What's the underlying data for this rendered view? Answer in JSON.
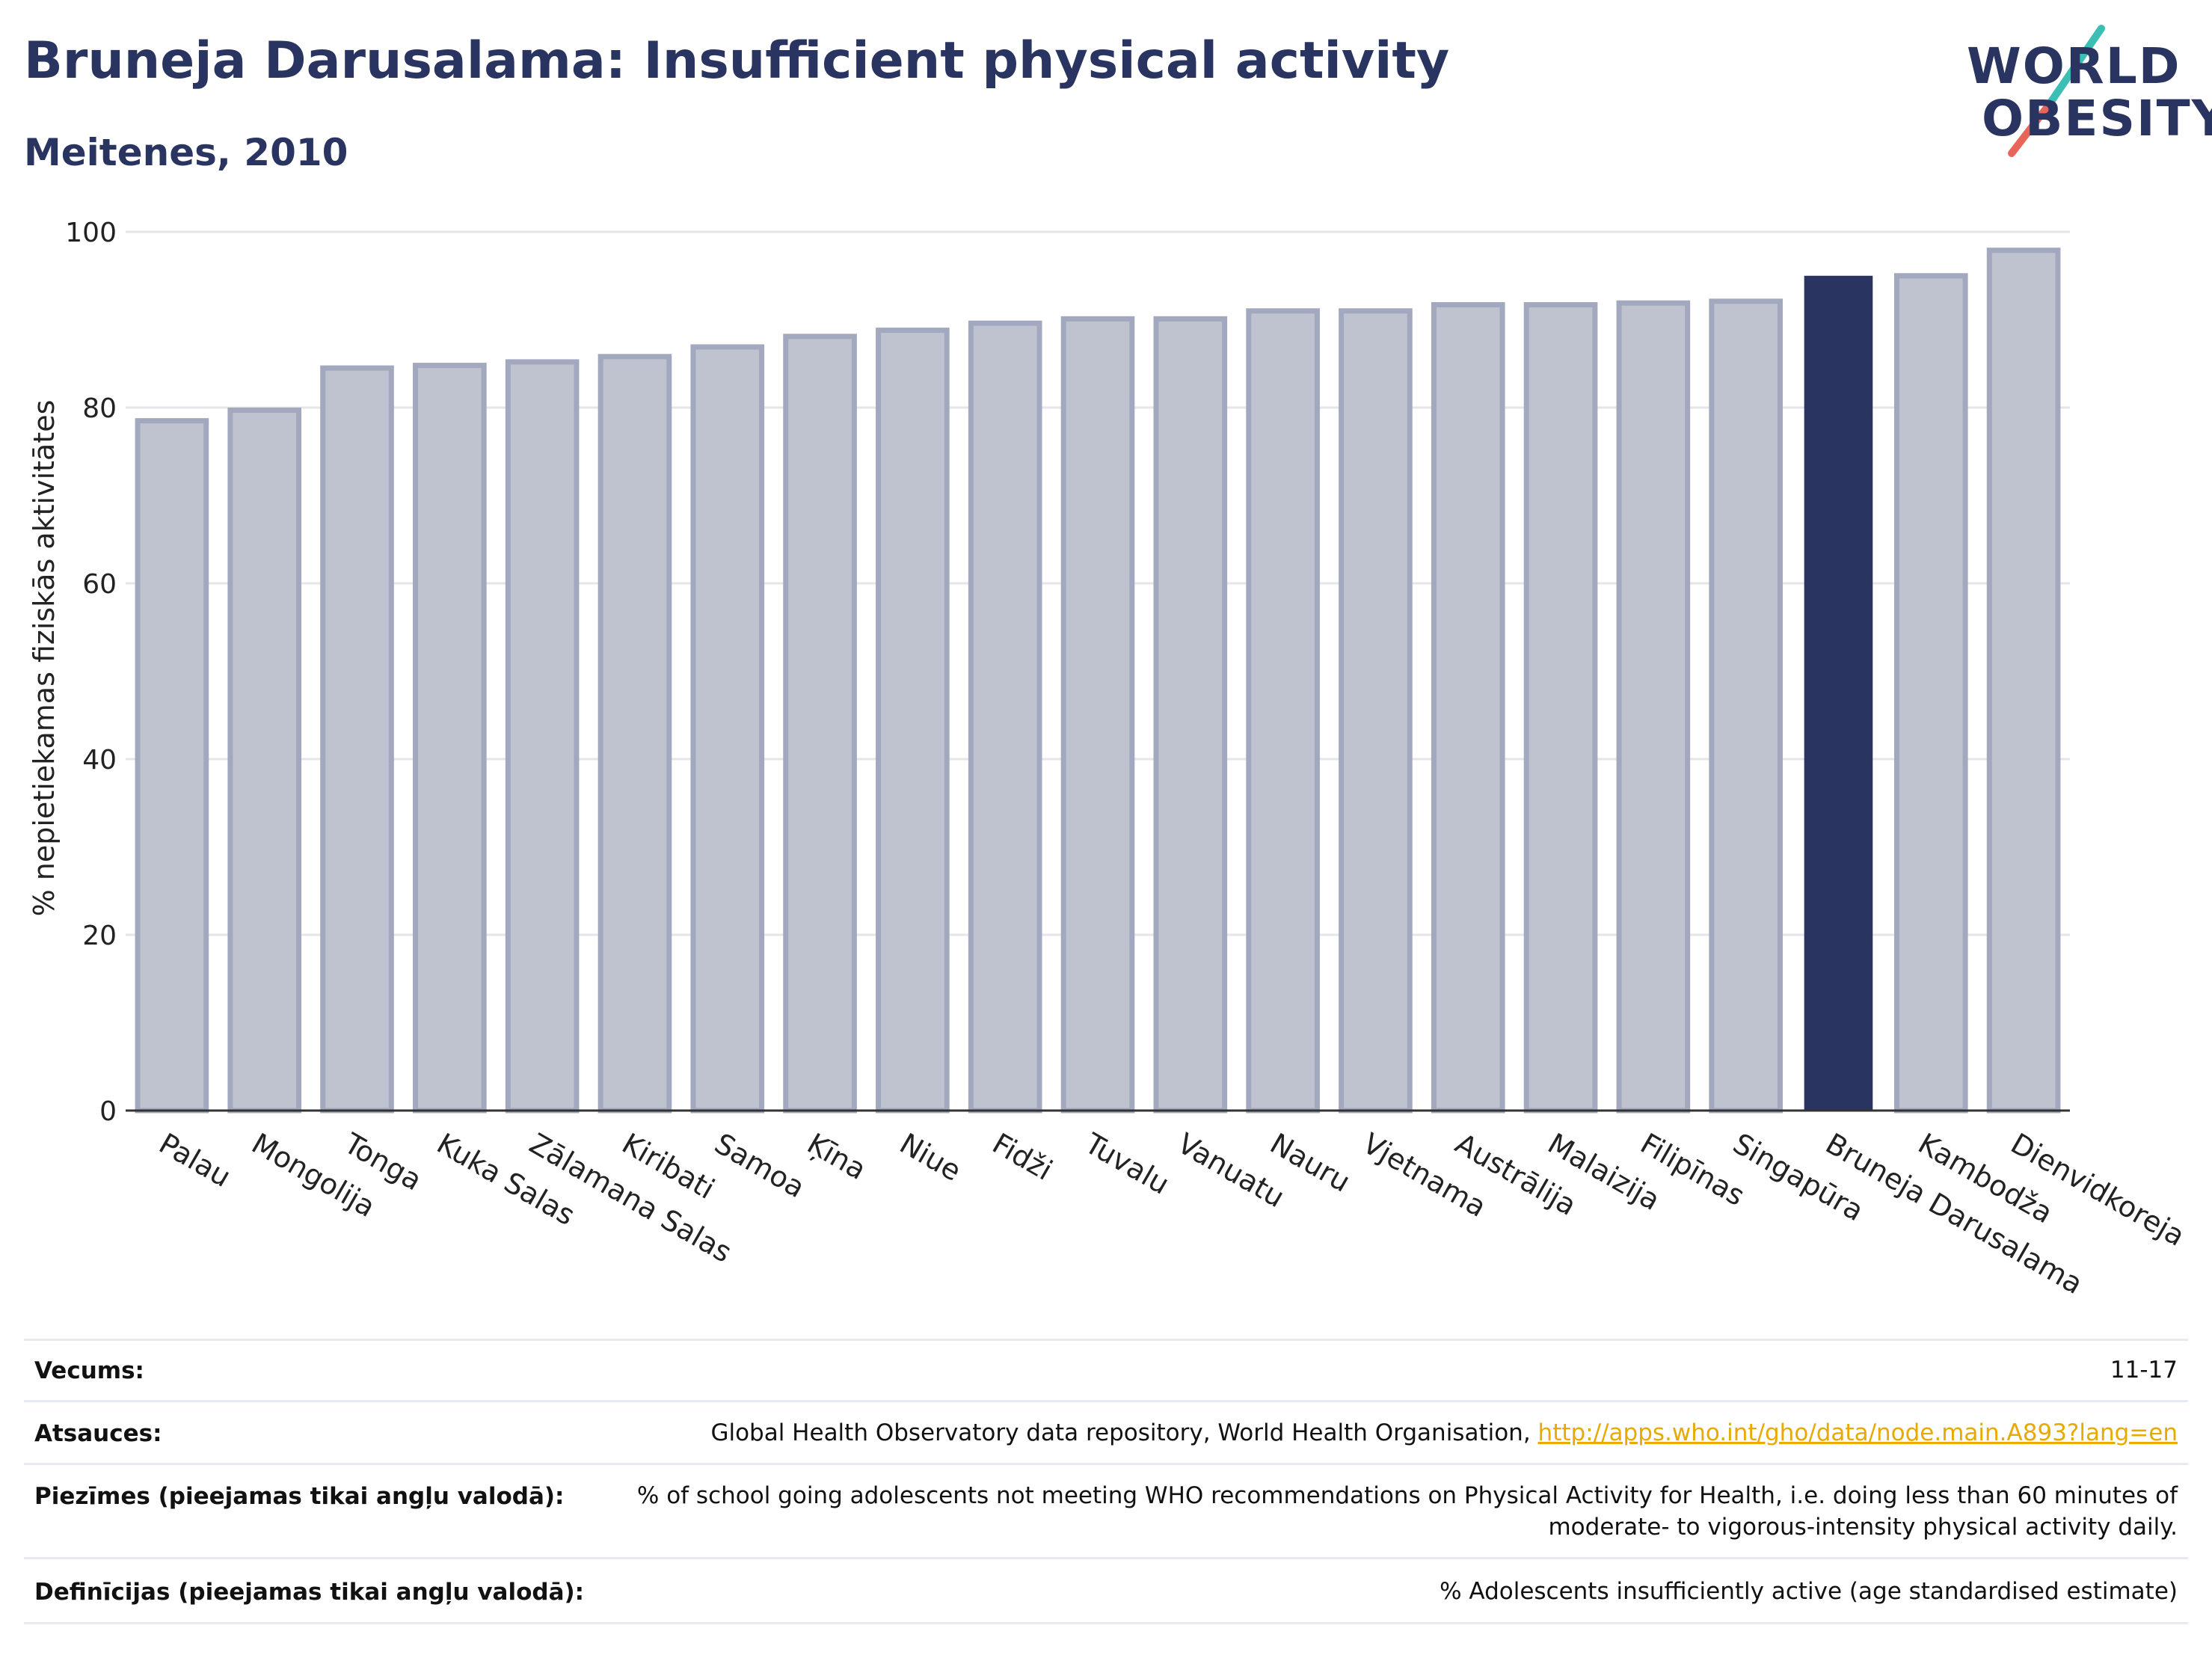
{
  "header": {
    "title": "Bruneja Darusalama: Insufficient physical activity",
    "subtitle": "Meitenes, 2010"
  },
  "logo": {
    "line1": "WORLD",
    "line2": "OBESITY"
  },
  "chart_data": {
    "type": "bar",
    "title": "Bruneja Darusalama: Insufficient physical activity",
    "subtitle": "Meitenes, 2010",
    "xlabel": "",
    "ylabel": "% nepietiekamas fiziskās aktivitātes",
    "ylim": [
      0,
      100
    ],
    "yticks": [
      0,
      20,
      40,
      60,
      80,
      100
    ],
    "grid": true,
    "categories": [
      "Palau",
      "Mongolija",
      "Tonga",
      "Kuka Salas",
      "Zālamana Salas",
      "Kiribati",
      "Samoa",
      "Ķīna",
      "Niue",
      "Fidži",
      "Tuvalu",
      "Vanuatu",
      "Nauru",
      "Vjetnama",
      "Austrālija",
      "Malaizija",
      "Filipīnas",
      "Singapūra",
      "Bruneja Darusalama",
      "Kambodža",
      "Dienvidkoreja"
    ],
    "values": [
      78.5,
      79.7,
      84.5,
      84.8,
      85.2,
      85.8,
      86.9,
      88.1,
      88.8,
      89.6,
      90.1,
      90.1,
      91.0,
      91.0,
      91.7,
      91.7,
      91.9,
      92.1,
      95.0,
      95.0,
      97.9
    ],
    "highlight": "Bruneja Darusalama",
    "colors": {
      "default_fill": "#bfc3d0",
      "default_stroke": "#a2a8bd",
      "highlight_fill": "#2a3461",
      "grid": "#e6e6ea",
      "axis": "#333333"
    }
  },
  "info": [
    {
      "label": "Vecums:",
      "value": "11-17"
    },
    {
      "label": "Atsauces:",
      "value": "Global Health Observatory data repository, World Health Organisation, ",
      "link": "http://apps.who.int/gho/data/node.main.A893?lang=en"
    },
    {
      "label": "Piezīmes (pieejamas tikai angļu valodā):",
      "value": "% of school going adolescents not meeting WHO recommendations on Physical Activity for Health, i.e. doing less than 60 minutes of",
      "value2": "moderate- to vigorous-intensity physical activity daily."
    },
    {
      "label": "Definīcijas (pieejamas tikai angļu valodā):",
      "value": "% Adolescents insufficiently active (age standardised estimate)"
    }
  ]
}
